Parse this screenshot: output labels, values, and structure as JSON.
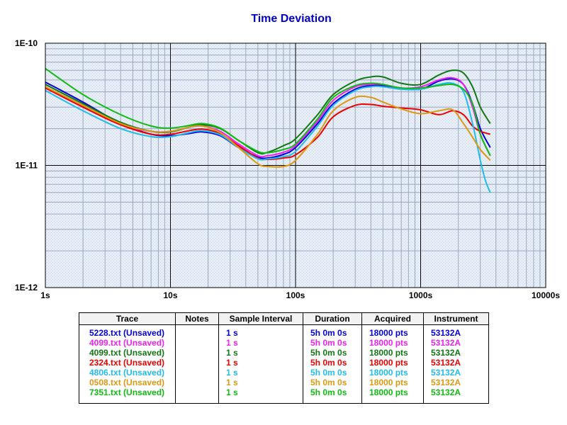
{
  "chart_data": {
    "type": "line",
    "title": "Time Deviation",
    "xscale": "log",
    "yscale": "log",
    "xlim": [
      1,
      10000
    ],
    "ylim": [
      1e-12,
      1e-10
    ],
    "x_tick_labels": [
      "1s",
      "10s",
      "100s",
      "1000s",
      "10000s"
    ],
    "y_tick_labels": [
      "1E-10",
      "1E-11",
      "1E-12"
    ],
    "grid": true,
    "series": [
      {
        "name": "5228.txt (Unsaved)",
        "color": "#0000dd",
        "x": [
          1,
          2,
          4,
          7,
          10,
          14,
          18,
          25,
          35,
          50,
          60,
          80,
          100,
          150,
          200,
          300,
          400,
          500,
          700,
          1000,
          1400,
          1800,
          2200,
          2600,
          3000,
          3600
        ],
        "y": [
          4.8e-11,
          3.3e-11,
          2.2e-11,
          1.8e-11,
          1.75e-11,
          1.82e-11,
          1.88e-11,
          1.75e-11,
          1.4e-11,
          1.17e-11,
          1.15e-11,
          1.23e-11,
          1.4e-11,
          2.2e-11,
          3.2e-11,
          4.2e-11,
          4.5e-11,
          4.5e-11,
          4.3e-11,
          4.2e-11,
          4.9e-11,
          5.1e-11,
          4.6e-11,
          3.2e-11,
          2e-11,
          1.4e-11
        ]
      },
      {
        "name": "4099.txt (Unsaved)",
        "color": "#ee22ee",
        "x": [
          1,
          2,
          4,
          7,
          10,
          14,
          18,
          25,
          35,
          50,
          60,
          80,
          100,
          150,
          200,
          300,
          400,
          500,
          700,
          1000,
          1400,
          1800,
          2200,
          2600,
          3000,
          3600
        ],
        "y": [
          4.3e-11,
          3e-11,
          2.15e-11,
          1.9e-11,
          1.9e-11,
          2.05e-11,
          2.1e-11,
          1.9e-11,
          1.5e-11,
          1.2e-11,
          1.2e-11,
          1.28e-11,
          1.45e-11,
          2.3e-11,
          3.4e-11,
          4.4e-11,
          4.6e-11,
          4.6e-11,
          4.3e-11,
          4.4e-11,
          5e-11,
          5.2e-11,
          4.6e-11,
          3e-11,
          1.8e-11,
          1.2e-11
        ]
      },
      {
        "name": "4099.txt (Unsaved)",
        "color": "#117711",
        "x": [
          1,
          2,
          4,
          7,
          10,
          14,
          18,
          25,
          35,
          50,
          60,
          80,
          100,
          150,
          200,
          300,
          400,
          500,
          700,
          1000,
          1400,
          1800,
          2200,
          2600,
          3000,
          3600
        ],
        "y": [
          4.6e-11,
          3.2e-11,
          2.25e-11,
          1.9e-11,
          1.88e-11,
          2.05e-11,
          2.15e-11,
          2e-11,
          1.6e-11,
          1.27e-11,
          1.28e-11,
          1.45e-11,
          1.65e-11,
          2.6e-11,
          3.8e-11,
          4.9e-11,
          5.3e-11,
          5.3e-11,
          4.7e-11,
          4.6e-11,
          5.5e-11,
          6e-11,
          5.7e-11,
          4.4e-11,
          3e-11,
          2.2e-11
        ]
      },
      {
        "name": "2324.txt (Unsaved)",
        "color": "#ee0000",
        "x": [
          1,
          2,
          4,
          7,
          10,
          14,
          18,
          25,
          35,
          50,
          60,
          80,
          100,
          150,
          200,
          300,
          400,
          500,
          700,
          1000,
          1400,
          1800,
          2200,
          2600,
          3000,
          3600
        ],
        "y": [
          4.3e-11,
          3e-11,
          2.15e-11,
          1.8e-11,
          1.8e-11,
          1.92e-11,
          1.98e-11,
          1.82e-11,
          1.45e-11,
          1.15e-11,
          1.12e-11,
          1.15e-11,
          1.22e-11,
          1.7e-11,
          2.5e-11,
          3.1e-11,
          3.15e-11,
          3.05e-11,
          2.95e-11,
          2.85e-11,
          2.6e-11,
          2.8e-11,
          2.6e-11,
          2.1e-11,
          1.9e-11,
          1.8e-11
        ]
      },
      {
        "name": "4806.txt (Unsaved)",
        "color": "#22bbee",
        "x": [
          1,
          2,
          4,
          7,
          10,
          14,
          18,
          25,
          35,
          50,
          60,
          80,
          100,
          150,
          200,
          300,
          400,
          500,
          700,
          1000,
          1400,
          1800,
          2200,
          2600,
          3000,
          3300,
          3600
        ],
        "y": [
          4.1e-11,
          2.8e-11,
          2e-11,
          1.72e-11,
          1.72e-11,
          1.85e-11,
          1.92e-11,
          1.78e-11,
          1.4e-11,
          1.13e-11,
          1.13e-11,
          1.18e-11,
          1.3e-11,
          2.1e-11,
          3.1e-11,
          4.1e-11,
          4.4e-11,
          4.4e-11,
          4.2e-11,
          4.2e-11,
          4.6e-11,
          4.7e-11,
          4e-11,
          2.2e-11,
          1.1e-11,
          7.5e-12,
          6e-12
        ]
      },
      {
        "name": "0508.txt (Unsaved)",
        "color": "#dd9911",
        "x": [
          1,
          2,
          4,
          7,
          10,
          14,
          18,
          25,
          35,
          50,
          60,
          80,
          100,
          150,
          200,
          300,
          400,
          500,
          700,
          1000,
          1400,
          1800,
          2200,
          2600,
          3000,
          3600
        ],
        "y": [
          4.4e-11,
          3.1e-11,
          2.2e-11,
          1.9e-11,
          1.9e-11,
          2.05e-11,
          2.1e-11,
          1.85e-11,
          1.4e-11,
          1.03e-11,
          9.8e-12,
          9.8e-12,
          1.1e-11,
          1.8e-11,
          2.8e-11,
          3.6e-11,
          3.6e-11,
          3.3e-11,
          2.9e-11,
          2.65e-11,
          2.8e-11,
          2.85e-11,
          2.2e-11,
          1.7e-11,
          1.35e-11,
          1.1e-11
        ]
      },
      {
        "name": "7351.txt (Unsaved)",
        "color": "#11bb11",
        "x": [
          1,
          2,
          4,
          7,
          10,
          14,
          18,
          25,
          35,
          50,
          60,
          80,
          100,
          150,
          200,
          300,
          400,
          500,
          700,
          1000,
          1400,
          1800,
          2200,
          2600,
          3000,
          3600
        ],
        "y": [
          6.2e-11,
          3.8e-11,
          2.6e-11,
          2.1e-11,
          2.02e-11,
          2.12e-11,
          2.2e-11,
          2.02e-11,
          1.6e-11,
          1.3e-11,
          1.27e-11,
          1.35e-11,
          1.5e-11,
          2.4e-11,
          3.6e-11,
          4.5e-11,
          4.7e-11,
          4.6e-11,
          4.3e-11,
          4.3e-11,
          4.5e-11,
          4.6e-11,
          4.2e-11,
          3.2e-11,
          1.8e-11,
          1.2e-11
        ]
      }
    ]
  },
  "legend_table": {
    "headers": [
      "Trace",
      "Notes",
      "Sample Interval",
      "Duration",
      "Acquired",
      "Instrument"
    ],
    "rows": [
      {
        "trace": "5228.txt (Unsaved)",
        "notes": "",
        "interval": "1 s",
        "duration": "5h 0m 0s",
        "acquired": "18000 pts",
        "instrument": "53132A",
        "color": "#0000dd"
      },
      {
        "trace": "4099.txt (Unsaved)",
        "notes": "",
        "interval": "1 s",
        "duration": "5h 0m 0s",
        "acquired": "18000 pts",
        "instrument": "53132A",
        "color": "#ee22ee"
      },
      {
        "trace": "4099.txt (Unsaved)",
        "notes": "",
        "interval": "1 s",
        "duration": "5h 0m 0s",
        "acquired": "18000 pts",
        "instrument": "53132A",
        "color": "#117711"
      },
      {
        "trace": "2324.txt (Unsaved)",
        "notes": "",
        "interval": "1 s",
        "duration": "5h 0m 0s",
        "acquired": "18000 pts",
        "instrument": "53132A",
        "color": "#ee0000"
      },
      {
        "trace": "4806.txt (Unsaved)",
        "notes": "",
        "interval": "1 s",
        "duration": "5h 0m 0s",
        "acquired": "18000 pts",
        "instrument": "53132A",
        "color": "#22bbee"
      },
      {
        "trace": "0508.txt (Unsaved)",
        "notes": "",
        "interval": "1 s",
        "duration": "5h 0m 0s",
        "acquired": "18000 pts",
        "instrument": "53132A",
        "color": "#dd9911"
      },
      {
        "trace": "7351.txt (Unsaved)",
        "notes": "",
        "interval": "1 s",
        "duration": "5h 0m 0s",
        "acquired": "18000 pts",
        "instrument": "53132A",
        "color": "#11bb11"
      }
    ]
  },
  "colors": {
    "title": "#0000cc",
    "plot_background": "#e8eef8",
    "major_grid": "#000000",
    "minor_grid": "#9aa8c0"
  }
}
